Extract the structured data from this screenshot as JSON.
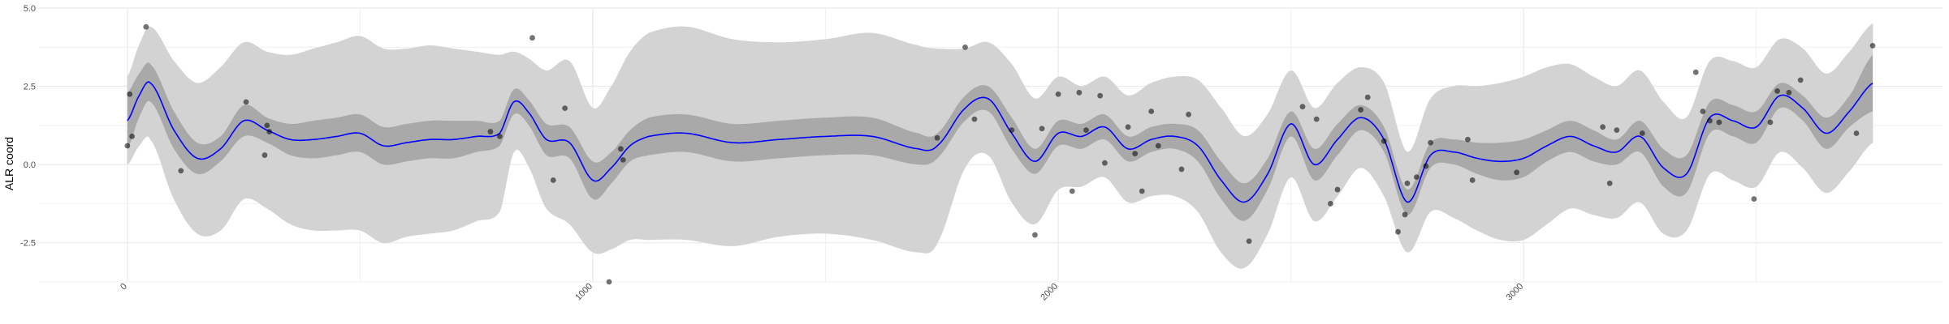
{
  "chart_data": {
    "type": "line",
    "ylabel": "ALR coord",
    "xlabel": "",
    "title": "",
    "xlim": [
      -190,
      3900
    ],
    "ylim": [
      -3.75,
      5.0
    ],
    "x_ticks": [
      0,
      1000,
      2000,
      3000
    ],
    "x_tick_labels": [
      "0",
      "1000",
      "2000",
      "3000"
    ],
    "y_ticks": [
      -2.5,
      0.0,
      2.5,
      5.0
    ],
    "y_tick_labels": [
      "-2.5",
      "0.0",
      "2.5",
      "5.0"
    ],
    "grid": true,
    "legend": "none",
    "colors": {
      "mean_line": "#0000ff",
      "inner_band": "#a9a9a9",
      "outer_band": "#d3d3d3",
      "points": "#000000",
      "grid": "#ebebeb"
    },
    "mean_line": {
      "x": [
        0,
        25,
        50,
        100,
        150,
        200,
        250,
        300,
        350,
        400,
        450,
        500,
        550,
        600,
        650,
        700,
        750,
        800,
        830,
        860,
        900,
        950,
        1000,
        1040,
        1080,
        1120,
        1200,
        1300,
        1400,
        1500,
        1600,
        1700,
        1740,
        1800,
        1850,
        1900,
        1950,
        2000,
        2050,
        2100,
        2150,
        2200,
        2250,
        2300,
        2350,
        2400,
        2450,
        2500,
        2550,
        2600,
        2650,
        2700,
        2750,
        2800,
        2850,
        2900,
        2950,
        3000,
        3050,
        3100,
        3150,
        3200,
        3250,
        3300,
        3350,
        3400,
        3450,
        3500,
        3550,
        3600,
        3650,
        3700,
        3750
      ],
      "y": [
        1.4,
        2.2,
        2.6,
        1.1,
        0.2,
        0.5,
        1.4,
        1.1,
        0.8,
        0.8,
        0.9,
        1.0,
        0.6,
        0.7,
        0.8,
        0.8,
        0.9,
        1.0,
        2.0,
        1.7,
        0.8,
        0.7,
        -0.5,
        -0.1,
        0.6,
        0.9,
        1.0,
        0.7,
        0.8,
        0.9,
        0.9,
        0.5,
        0.6,
        1.8,
        2.1,
        1.0,
        0.1,
        1.0,
        0.9,
        1.2,
        0.5,
        0.8,
        0.9,
        0.6,
        -0.5,
        -1.2,
        -0.3,
        1.3,
        0.0,
        0.8,
        1.5,
        0.8,
        -1.2,
        0.3,
        0.4,
        0.2,
        0.1,
        0.2,
        0.6,
        0.9,
        0.6,
        0.4,
        0.9,
        -0.1,
        -0.3,
        1.5,
        1.4,
        1.2,
        2.2,
        1.8,
        1.0,
        1.7,
        2.6
      ],
      "inner_band_halfwidth": [
        0.9,
        0.7,
        0.6,
        0.6,
        0.5,
        0.4,
        0.5,
        0.4,
        0.5,
        0.6,
        0.6,
        0.6,
        0.6,
        0.6,
        0.6,
        0.6,
        0.5,
        0.4,
        0.4,
        0.4,
        0.5,
        0.5,
        0.6,
        0.5,
        0.5,
        0.6,
        0.6,
        0.6,
        0.6,
        0.6,
        0.6,
        0.5,
        0.4,
        0.4,
        0.4,
        0.5,
        0.4,
        0.4,
        0.4,
        0.4,
        0.4,
        0.4,
        0.4,
        0.5,
        0.6,
        0.6,
        0.5,
        0.4,
        0.5,
        0.5,
        0.4,
        0.4,
        0.4,
        0.4,
        0.4,
        0.5,
        0.6,
        0.6,
        0.5,
        0.5,
        0.5,
        0.4,
        0.5,
        0.6,
        0.6,
        0.5,
        0.5,
        0.5,
        0.4,
        0.4,
        0.5,
        0.5,
        0.9
      ],
      "outer_band_halfwidth": [
        1.4,
        1.6,
        1.8,
        2.2,
        2.4,
        2.6,
        2.5,
        2.5,
        2.7,
        2.9,
        3.0,
        3.1,
        3.1,
        3.0,
        3.0,
        2.9,
        2.7,
        2.5,
        1.6,
        1.7,
        2.2,
        2.6,
        2.3,
        2.6,
        3.0,
        3.3,
        3.4,
        3.3,
        3.1,
        3.1,
        3.3,
        3.3,
        3.1,
        1.9,
        1.8,
        2.2,
        2.0,
        1.8,
        1.6,
        1.6,
        1.7,
        1.8,
        1.9,
        2.1,
        2.3,
        2.1,
        1.9,
        1.7,
        1.8,
        1.8,
        1.6,
        1.8,
        1.6,
        1.8,
        2.1,
        2.3,
        2.5,
        2.6,
        2.5,
        2.3,
        2.2,
        2.1,
        2.1,
        2.1,
        1.8,
        1.8,
        1.9,
        1.9,
        1.8,
        1.9,
        1.9,
        1.9,
        1.9
      ]
    },
    "points": {
      "x": [
        0,
        5,
        10,
        40,
        115,
        255,
        295,
        300,
        305,
        780,
        800,
        870,
        915,
        940,
        1035,
        1060,
        1065,
        1740,
        1800,
        1820,
        1900,
        1950,
        1965,
        2000,
        2030,
        2045,
        2060,
        2090,
        2100,
        2150,
        2165,
        2180,
        2200,
        2215,
        2265,
        2280,
        2410,
        2525,
        2555,
        2585,
        2600,
        2650,
        2665,
        2700,
        2730,
        2745,
        2750,
        2770,
        2790,
        2800,
        2880,
        2890,
        2985,
        3170,
        3185,
        3200,
        3255,
        3370,
        3385,
        3400,
        3420,
        3495,
        3530,
        3545,
        3570,
        3595,
        3715,
        3750
      ],
      "y": [
        0.6,
        2.25,
        0.9,
        4.4,
        -0.2,
        2.0,
        0.3,
        1.25,
        1.05,
        1.05,
        0.9,
        4.05,
        -0.5,
        1.8,
        -3.75,
        0.5,
        0.15,
        0.85,
        3.75,
        1.45,
        1.1,
        -2.25,
        1.15,
        2.25,
        -0.85,
        2.3,
        1.1,
        2.2,
        0.05,
        1.2,
        0.35,
        -0.85,
        1.7,
        0.6,
        -0.15,
        1.6,
        -2.45,
        1.85,
        1.45,
        -1.25,
        -0.8,
        1.75,
        2.15,
        0.75,
        -2.15,
        -1.6,
        -0.6,
        -0.4,
        -0.05,
        0.7,
        0.8,
        -0.5,
        -0.25,
        1.2,
        -0.6,
        1.1,
        1.0,
        2.95,
        1.7,
        1.4,
        1.35,
        -1.1,
        1.35,
        2.35,
        2.3,
        2.7,
        1.0,
        3.8
      ]
    }
  }
}
